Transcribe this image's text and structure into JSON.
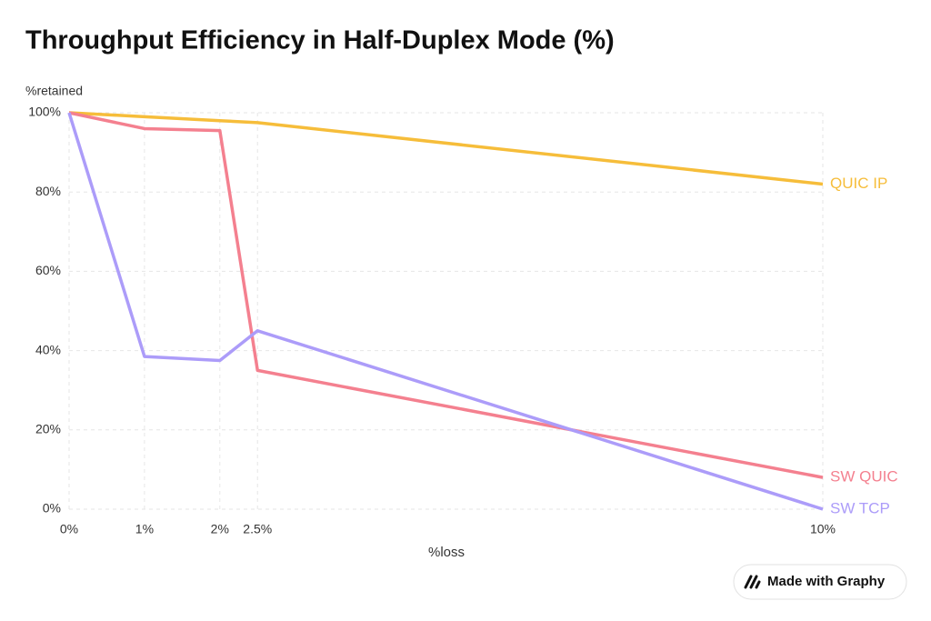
{
  "chart_data": {
    "type": "line",
    "title": "Throughput Efficiency in Half-Duplex Mode (%)",
    "y_label": "%retained",
    "x_label": "%loss",
    "x": [
      0,
      1,
      2,
      2.5,
      10
    ],
    "xlim": [
      0,
      10
    ],
    "xticks": [
      {
        "value": 0,
        "label": "0%"
      },
      {
        "value": 1,
        "label": "1%"
      },
      {
        "value": 2,
        "label": "2%"
      },
      {
        "value": 2.5,
        "label": "2.5%"
      },
      {
        "value": 10,
        "label": "10%"
      }
    ],
    "ylim": [
      0,
      100
    ],
    "yticks": [
      {
        "value": 0,
        "label": "0%"
      },
      {
        "value": 20,
        "label": "20%"
      },
      {
        "value": 40,
        "label": "40%"
      },
      {
        "value": 60,
        "label": "60%"
      },
      {
        "value": 80,
        "label": "80%"
      },
      {
        "value": 100,
        "label": "100%"
      }
    ],
    "grid": true,
    "series": [
      {
        "name": "QUIC IP",
        "color": "#f6bd3a",
        "values": [
          100,
          99,
          98,
          97.5,
          82
        ]
      },
      {
        "name": "SW QUIC",
        "color": "#f4808f",
        "values": [
          100,
          96,
          95.5,
          35,
          8
        ]
      },
      {
        "name": "SW TCP",
        "color": "#ac9cf9",
        "values": [
          100,
          38.5,
          37.5,
          45,
          0
        ]
      }
    ]
  },
  "badge": "Made with Graphy"
}
